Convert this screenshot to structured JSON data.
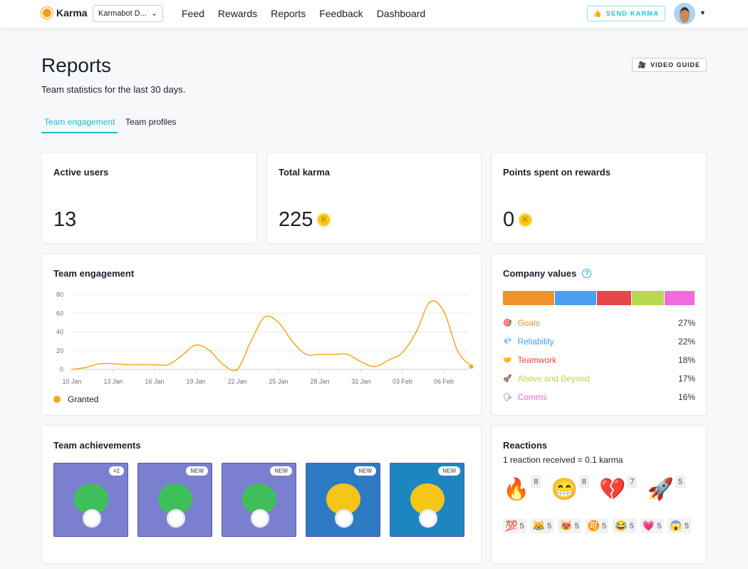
{
  "nav": {
    "brand": "Karma",
    "workspace": "Karmabot D...",
    "links": [
      "Feed",
      "Rewards",
      "Reports",
      "Feedback",
      "Dashboard"
    ],
    "send_karma": "SEND KARMA"
  },
  "page": {
    "title": "Reports",
    "subtitle": "Team statistics for the last 30 days.",
    "video_guide": "VIDEO GUIDE",
    "tabs": [
      "Team engagement",
      "Team profiles"
    ]
  },
  "stats": [
    {
      "label": "Active users",
      "value": "13"
    },
    {
      "label": "Total karma",
      "value": "225"
    },
    {
      "label": "Points spent on rewards",
      "value": "0"
    }
  ],
  "coin_letter": "K",
  "engagement": {
    "title": "Team engagement"
  },
  "chart_data": {
    "type": "line",
    "series": [
      {
        "name": "Granted",
        "color": "#f5a623",
        "values": [
          0,
          2,
          6,
          6,
          5,
          5,
          5,
          5,
          15,
          26,
          20,
          5,
          0,
          30,
          56,
          50,
          30,
          16,
          16,
          16,
          16,
          8,
          3,
          10,
          18,
          40,
          72,
          62,
          20,
          3
        ]
      }
    ],
    "x": [
      "10 Jan",
      "11 Jan",
      "12 Jan",
      "13 Jan",
      "14 Jan",
      "15 Jan",
      "16 Jan",
      "17 Jan",
      "18 Jan",
      "19 Jan",
      "20 Jan",
      "21 Jan",
      "22 Jan",
      "23 Jan",
      "24 Jan",
      "25 Jan",
      "26 Jan",
      "27 Jan",
      "28 Jan",
      "29 Jan",
      "30 Jan",
      "31 Jan",
      "01 Feb",
      "02 Feb",
      "03 Feb",
      "04 Feb",
      "05 Feb",
      "06 Feb",
      "07 Feb",
      "08 Feb"
    ],
    "xticks": [
      "10 Jan",
      "13 Jan",
      "16 Jan",
      "19 Jan",
      "22 Jan",
      "25 Jan",
      "28 Jan",
      "31 Jan",
      "03 Feb",
      "06 Feb"
    ],
    "yticks": [
      "0",
      "20",
      "40",
      "60",
      "80"
    ],
    "ylim": [
      0,
      80
    ],
    "grid": true,
    "legend": "bottom-left"
  },
  "values": {
    "title": "Company values",
    "items": [
      {
        "label": "Goals",
        "pct": "27%",
        "color": "#f0922b",
        "icon": "🎯"
      },
      {
        "label": "Reliability",
        "pct": "22%",
        "color": "#4a9ff0",
        "icon": "💎"
      },
      {
        "label": "Teamwork",
        "pct": "18%",
        "color": "#e54848",
        "icon": "🤝"
      },
      {
        "label": "Above and Beyond",
        "pct": "17%",
        "color": "#b8d84f",
        "icon": "🚀"
      },
      {
        "label": "Comms",
        "pct": "16%",
        "color": "#f06ae0",
        "icon": "🗣"
      }
    ]
  },
  "achievements": {
    "title": "Team achievements",
    "items": [
      {
        "badge": "×2",
        "bg": "#7b7fcf"
      },
      {
        "badge": "NEW",
        "bg": "#7b7fcf"
      },
      {
        "badge": "NEW",
        "bg": "#7b7fcf"
      },
      {
        "badge": "NEW",
        "bg": "#2e7bc4"
      },
      {
        "badge": "NEW",
        "bg": "#1d86c0"
      }
    ]
  },
  "reactions": {
    "title": "Reactions",
    "subtitle": "1 reaction received = 0.1 karma",
    "top": [
      {
        "emoji": "🔥",
        "count": "8"
      },
      {
        "emoji": "😁",
        "count": "8"
      },
      {
        "emoji": "💔",
        "count": "7"
      },
      {
        "emoji": "🚀",
        "count": "5"
      }
    ],
    "small": [
      {
        "emoji": "💯",
        "count": "5"
      },
      {
        "emoji": "😹",
        "count": "5"
      },
      {
        "emoji": "😻",
        "count": "5"
      },
      {
        "emoji": "🉑",
        "count": "5"
      },
      {
        "emoji": "😂",
        "count": "5"
      },
      {
        "emoji": "💗",
        "count": "5"
      },
      {
        "emoji": "😱",
        "count": "5"
      }
    ]
  }
}
